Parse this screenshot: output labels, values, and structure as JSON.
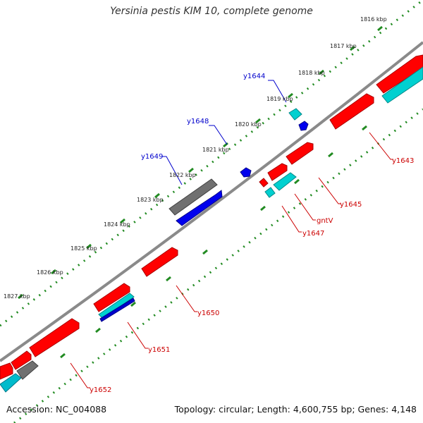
{
  "title": "Yersinia pestis KIM 10, complete genome",
  "accession": "Accession: NC_004088",
  "topology": "Topology: circular; Length: 4,600,755 bp; Genes: 4,148",
  "ticks": [
    {
      "label": "1816 kbp"
    },
    {
      "label": "1817 kbp"
    },
    {
      "label": "1818 kbp"
    },
    {
      "label": "1819 kbp"
    },
    {
      "label": "1820 kbp"
    },
    {
      "label": "1821 kbp"
    },
    {
      "label": "1822 kbp"
    },
    {
      "label": "1823 kbp"
    },
    {
      "label": "1824 kbp"
    },
    {
      "label": "1825 kbp"
    },
    {
      "label": "1826 kbp"
    },
    {
      "label": "1827 kbp"
    }
  ],
  "genes": [
    {
      "label": "y1644",
      "color": "#0000cc"
    },
    {
      "label": "y1648",
      "color": "#0000cc"
    },
    {
      "label": "y1649",
      "color": "#0000cc"
    },
    {
      "label": "y1643",
      "color": "#cc0000"
    },
    {
      "label": "y1645",
      "color": "#cc0000"
    },
    {
      "label": "gntV",
      "color": "#cc0000"
    },
    {
      "label": "y1647",
      "color": "#cc0000"
    },
    {
      "label": "y1650",
      "color": "#cc0000"
    },
    {
      "label": "y1651",
      "color": "#cc0000"
    },
    {
      "label": "y1652",
      "color": "#cc0000"
    }
  ],
  "colors": {
    "backbone": "#8a8a8a",
    "tick_green": "#228b22",
    "feature_red": "#ff0000",
    "feature_cyan": "#00d0d0",
    "feature_blue": "#0000ee",
    "feature_gray": "#707070",
    "label_blue": "#0000cc",
    "label_red": "#cc0000"
  }
}
